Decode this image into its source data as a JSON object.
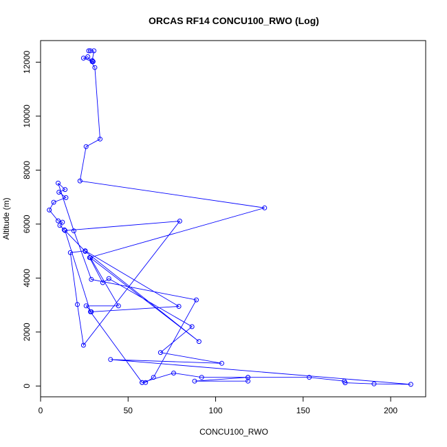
{
  "chart_data": {
    "type": "line",
    "title": "ORCAS RF14 CONCU100_RWO (Log)",
    "xlabel": "CONCU100_RWO",
    "ylabel": "Altitude (m)",
    "xlim": [
      0,
      220
    ],
    "ylim": [
      -400,
      12800
    ],
    "xticks": [
      0,
      50,
      100,
      150,
      200
    ],
    "yticks": [
      0,
      2000,
      4000,
      6000,
      8000,
      10000,
      12000
    ],
    "line_color": "#0000ff",
    "marker": "open-circle",
    "grid": false,
    "series": [
      {
        "points": [
          [
            28.5,
            12420
          ],
          [
            27.5,
            12420
          ],
          [
            30.5,
            12420
          ],
          [
            29.5,
            12060
          ],
          [
            30,
            12020
          ],
          [
            29.5,
            12020
          ],
          [
            24.5,
            12150
          ],
          [
            27,
            12200
          ],
          [
            31,
            11800
          ],
          [
            34,
            9150
          ],
          [
            26,
            8870
          ],
          [
            22.5,
            7600
          ],
          [
            128,
            6600
          ],
          [
            28,
            4760
          ],
          [
            35.5,
            3830
          ],
          [
            39,
            3980
          ],
          [
            86.5,
            2200
          ],
          [
            68.5,
            1240
          ],
          [
            103.5,
            840
          ],
          [
            40,
            980
          ],
          [
            211.5,
            60
          ],
          [
            190.5,
            80
          ],
          [
            174,
            120
          ],
          [
            173.5,
            180
          ],
          [
            153.5,
            320
          ],
          [
            118.5,
            320
          ],
          [
            88,
            180
          ],
          [
            118.5,
            180
          ],
          [
            118.5,
            320
          ],
          [
            92,
            320
          ],
          [
            76,
            480
          ],
          [
            58,
            130
          ],
          [
            60,
            130
          ],
          [
            64.5,
            320
          ],
          [
            89,
            3190
          ],
          [
            29,
            3950
          ],
          [
            19,
            5750
          ],
          [
            10,
            7520
          ],
          [
            14,
            7280
          ],
          [
            10.5,
            7180
          ],
          [
            14.5,
            6980
          ],
          [
            7.5,
            6810
          ],
          [
            5,
            6520
          ],
          [
            10,
            6120
          ],
          [
            12.5,
            6070
          ],
          [
            11,
            5950
          ],
          [
            13.5,
            5790
          ],
          [
            25.5,
            4990
          ],
          [
            90.5,
            1650
          ],
          [
            28.5,
            4750
          ],
          [
            44.5,
            2970
          ],
          [
            26,
            2970
          ],
          [
            29,
            2750
          ],
          [
            79,
            2950
          ],
          [
            25.5,
            5010
          ],
          [
            17,
            4940
          ],
          [
            21,
            3020
          ],
          [
            24.5,
            1510
          ],
          [
            79.5,
            6110
          ],
          [
            14,
            5760
          ],
          [
            28.5,
            2750
          ],
          [
            58,
            130
          ]
        ]
      }
    ]
  }
}
